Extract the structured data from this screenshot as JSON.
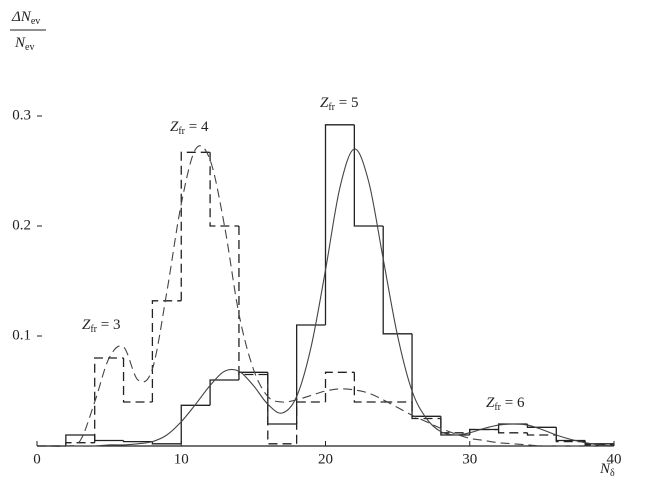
{
  "chart_data": {
    "type": "histogram",
    "ylabel": {
      "num_main": "ΔN",
      "num_sub": "ev",
      "den_main": "N",
      "den_sub": "ev"
    },
    "xlabel": {
      "main": "N",
      "sub": "δ"
    },
    "bins": [
      0,
      2,
      4,
      6,
      8,
      10,
      12,
      14,
      16,
      18,
      20,
      22,
      24,
      26,
      28,
      30,
      32,
      34,
      36,
      38,
      40
    ],
    "series": [
      {
        "style": "solid",
        "color": "#222",
        "values": [
          0,
          0.01,
          0.005,
          0.004,
          0.002,
          0.037,
          0.06,
          0.067,
          0.02,
          0.11,
          0.292,
          0.2,
          0.102,
          0.027,
          0.01,
          0.015,
          0.02,
          0.017,
          0.005,
          0.002
        ]
      },
      {
        "style": "dashed",
        "color": "#222",
        "values": [
          0,
          0.003,
          0.08,
          0.04,
          0.132,
          0.267,
          0.2,
          0.065,
          0.002,
          0.04,
          0.067,
          0.04,
          0.04,
          0.025,
          0.012,
          0.015,
          0.012,
          0.01,
          0.004,
          0.001
        ]
      }
    ],
    "curve_x": [
      0,
      1,
      2,
      3,
      4,
      5,
      6,
      7,
      8,
      9,
      10,
      11,
      12,
      13,
      14,
      15,
      16,
      17,
      18,
      19,
      20,
      21,
      22,
      23,
      24,
      25,
      26,
      27,
      28,
      29,
      30,
      31,
      32,
      33,
      34,
      35,
      36,
      37,
      38,
      39,
      40
    ],
    "curves": [
      {
        "style": "solid",
        "color": "#444",
        "values": [
          0,
          0,
          0,
          0,
          0,
          0.001,
          0.001,
          0.002,
          0.004,
          0.01,
          0.022,
          0.038,
          0.055,
          0.068,
          0.068,
          0.055,
          0.038,
          0.03,
          0.045,
          0.09,
          0.16,
          0.235,
          0.27,
          0.24,
          0.17,
          0.1,
          0.05,
          0.025,
          0.013,
          0.01,
          0.012,
          0.016,
          0.019,
          0.02,
          0.019,
          0.015,
          0.01,
          0.006,
          0.003,
          0.001,
          0
        ]
      },
      {
        "style": "dashed",
        "color": "#444",
        "values": [
          0,
          0,
          0,
          0.005,
          0.04,
          0.08,
          0.09,
          0.06,
          0.07,
          0.14,
          0.22,
          0.27,
          0.26,
          0.2,
          0.12,
          0.07,
          0.045,
          0.04,
          0.042,
          0.046,
          0.05,
          0.052,
          0.051,
          0.048,
          0.042,
          0.035,
          0.028,
          0.022,
          0.016,
          0.011,
          0.007,
          0.005,
          0.003,
          0.002,
          0.001,
          0,
          0,
          0,
          0,
          0,
          0
        ]
      }
    ],
    "annotations": [
      {
        "main": "Z",
        "sub": "fr",
        "rest": " = 3"
      },
      {
        "main": "Z",
        "sub": "fr",
        "rest": " = 4"
      },
      {
        "main": "Z",
        "sub": "fr",
        "rest": " = 5"
      },
      {
        "main": "Z",
        "sub": "fr",
        "rest": " = 6"
      }
    ],
    "xlim": [
      0,
      40
    ],
    "ylim": [
      0,
      0.3
    ],
    "xticks": [
      0,
      10,
      20,
      30,
      40
    ],
    "yticks": [
      0.1,
      0.2,
      0.3
    ]
  }
}
